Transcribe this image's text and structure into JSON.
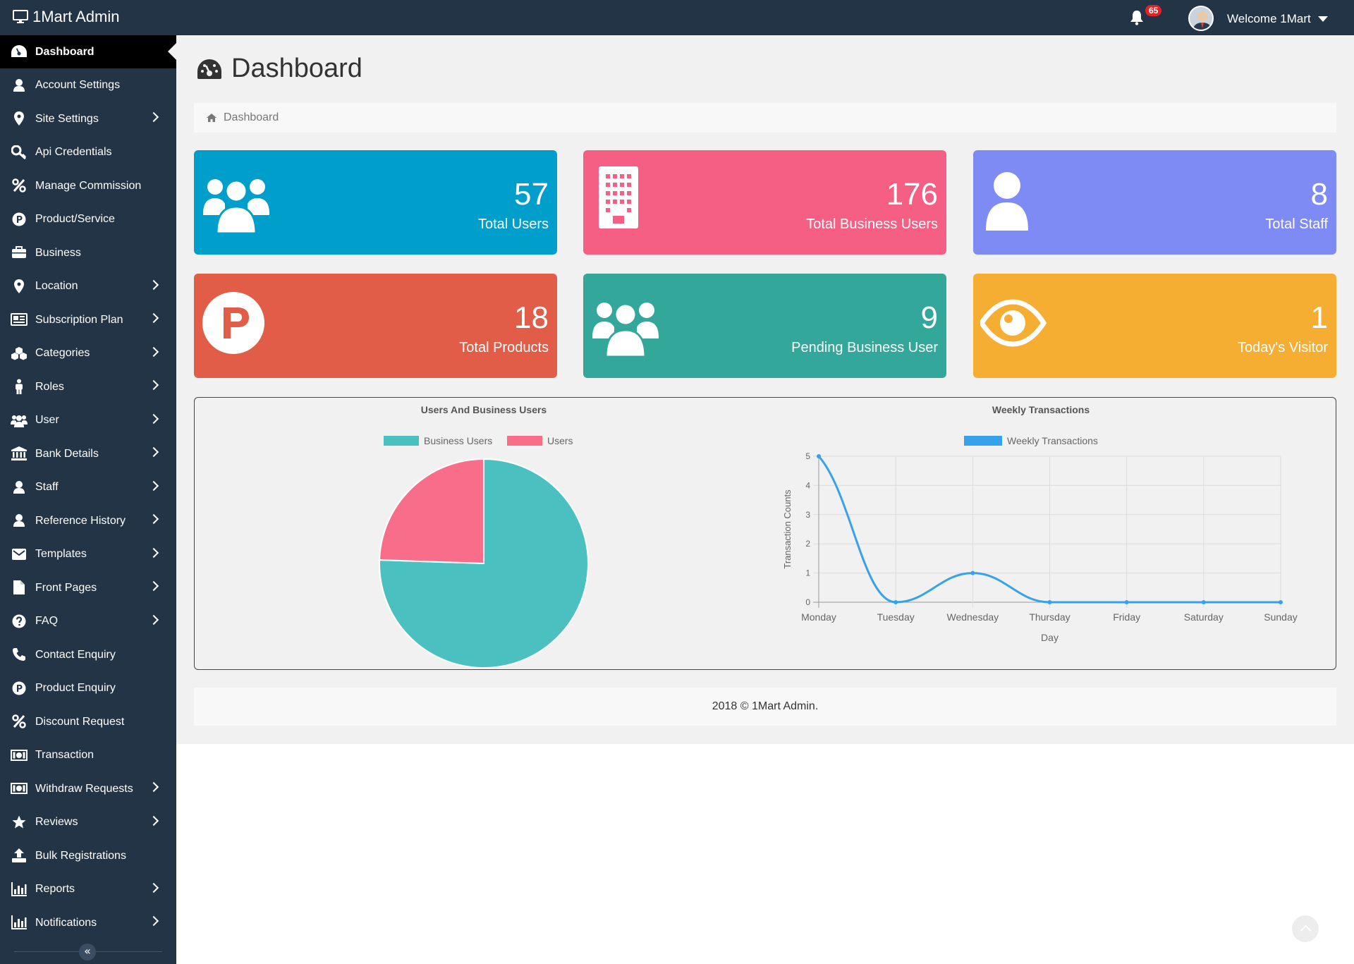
{
  "app": {
    "title": "1Mart Admin"
  },
  "topbar": {
    "notification_count": "65",
    "welcome": "Welcome 1Mart"
  },
  "sidebar": {
    "items": [
      {
        "label": "Dashboard",
        "icon": "dashboard-icon",
        "active": true,
        "expandable": false
      },
      {
        "label": "Account Settings",
        "icon": "user-icon",
        "expandable": false
      },
      {
        "label": "Site Settings",
        "icon": "map-marker-icon",
        "expandable": true
      },
      {
        "label": "Api Credentials",
        "icon": "key-icon",
        "expandable": false
      },
      {
        "label": "Manage Commission",
        "icon": "percent-icon",
        "expandable": false
      },
      {
        "label": "Product/Service",
        "icon": "product-p-icon",
        "expandable": false
      },
      {
        "label": "Business",
        "icon": "briefcase-icon",
        "expandable": false
      },
      {
        "label": "Location",
        "icon": "map-marker-icon",
        "expandable": true
      },
      {
        "label": "Subscription Plan",
        "icon": "newspaper-icon",
        "expandable": true
      },
      {
        "label": "Categories",
        "icon": "cubes-icon",
        "expandable": true
      },
      {
        "label": "Roles",
        "icon": "person-icon",
        "expandable": true
      },
      {
        "label": "User",
        "icon": "users-icon",
        "expandable": true
      },
      {
        "label": "Bank Details",
        "icon": "bank-icon",
        "expandable": true
      },
      {
        "label": "Staff",
        "icon": "user-icon",
        "expandable": true
      },
      {
        "label": "Reference History",
        "icon": "user-icon",
        "expandable": true
      },
      {
        "label": "Templates",
        "icon": "envelope-icon",
        "expandable": true
      },
      {
        "label": "Front Pages",
        "icon": "file-icon",
        "expandable": true
      },
      {
        "label": "FAQ",
        "icon": "question-icon",
        "expandable": true
      },
      {
        "label": "Contact Enquiry",
        "icon": "phone-icon",
        "expandable": false
      },
      {
        "label": "Product Enquiry",
        "icon": "product-p-icon",
        "expandable": false
      },
      {
        "label": "Discount Request",
        "icon": "percent-icon",
        "expandable": false
      },
      {
        "label": "Transaction",
        "icon": "money-icon",
        "expandable": false
      },
      {
        "label": "Withdraw Requests",
        "icon": "money-icon",
        "expandable": true
      },
      {
        "label": "Reviews",
        "icon": "star-icon",
        "expandable": true
      },
      {
        "label": "Bulk Registrations",
        "icon": "upload-icon",
        "expandable": false
      },
      {
        "label": "Reports",
        "icon": "bar-chart-icon",
        "expandable": true
      },
      {
        "label": "Notifications",
        "icon": "bar-chart-icon",
        "expandable": true
      }
    ],
    "collapse_glyph": "«"
  },
  "page": {
    "title": "Dashboard",
    "breadcrumb": "Dashboard"
  },
  "cards": [
    {
      "value": "57",
      "label": "Total Users",
      "color": "#009fcb",
      "icon": "users-icon"
    },
    {
      "value": "176",
      "label": "Total Business Users",
      "color": "#f65f84",
      "icon": "building-icon"
    },
    {
      "value": "8",
      "label": "Total Staff",
      "color": "#7f8bf5",
      "icon": "user-icon"
    },
    {
      "value": "18",
      "label": "Total Products",
      "color": "#e15d47",
      "icon": "product-p-icon"
    },
    {
      "value": "9",
      "label": "Pending Business User",
      "color": "#33a79a",
      "icon": "users-icon"
    },
    {
      "value": "1",
      "label": "Today's Visitor",
      "color": "#f6ae32",
      "icon": "eye-icon"
    }
  ],
  "footer": {
    "text": "2018 © 1Mart Admin."
  },
  "chart_data": [
    {
      "type": "pie",
      "title": "Users And Business Users",
      "legend_position": "top",
      "categories": [
        "Business Users",
        "Users"
      ],
      "values": [
        176,
        57
      ],
      "colors": [
        "#4bc0c0",
        "#f76d8a"
      ]
    },
    {
      "type": "line",
      "title": "Weekly Transactions",
      "legend_position": "top",
      "xlabel": "Day",
      "ylabel": "Transaction Counts",
      "categories": [
        "Monday",
        "Tuesday",
        "Wednesday",
        "Thursday",
        "Friday",
        "Saturday",
        "Sunday"
      ],
      "series": [
        {
          "name": "Weekly Transactions",
          "values": [
            5,
            0,
            1,
            0,
            0,
            0,
            0
          ],
          "color": "#36a2eb"
        }
      ],
      "ylim": [
        0,
        5
      ],
      "yticks": [
        0,
        1,
        2,
        3,
        4,
        5
      ],
      "grid": true
    }
  ]
}
